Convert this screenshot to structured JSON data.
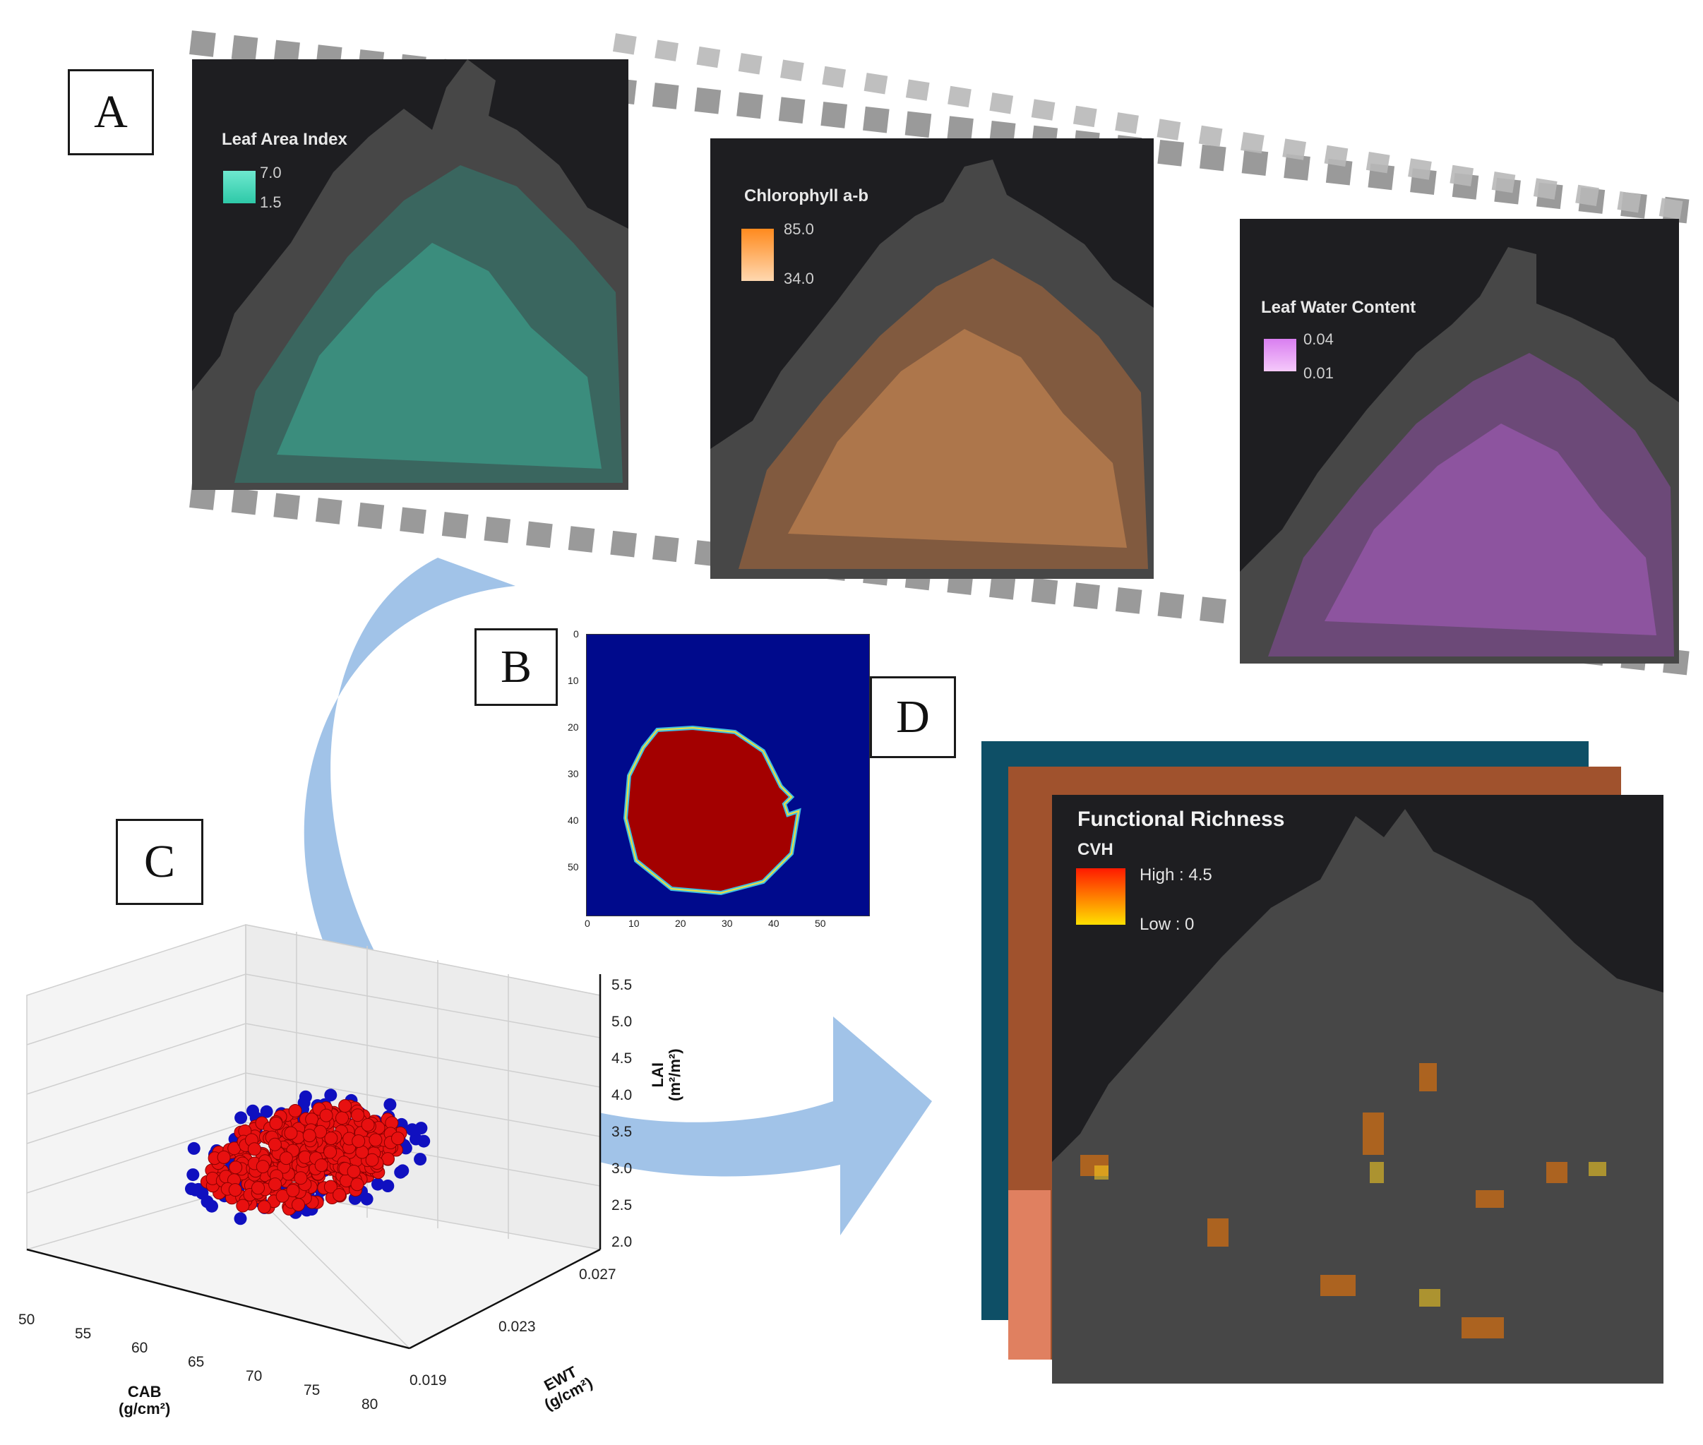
{
  "labels": {
    "a": "A",
    "b": "B",
    "c": "C",
    "d": "D"
  },
  "maps": [
    {
      "id": "lai",
      "legend_title": "Leaf Area Index",
      "high": "7.0",
      "low": "1.5",
      "color": "#3fd6b8"
    },
    {
      "id": "chl",
      "legend_title": "Chlorophyll a-b",
      "high": "85.0",
      "low": "34.0",
      "color": "#f0a060"
    },
    {
      "id": "lwc",
      "legend_title": "Leaf Water Content",
      "high": "0.04",
      "low": "0.01",
      "color": "#c066d9"
    }
  ],
  "panel_b": {
    "y_ticks": [
      "0",
      "10",
      "20",
      "30",
      "40",
      "50"
    ],
    "x_ticks": [
      "0",
      "10",
      "20",
      "30",
      "40",
      "50"
    ],
    "background_color": "#000a8c",
    "disk_color": "#a30000"
  },
  "panel_c": {
    "z_ticks": [
      "5.5",
      "5.0",
      "4.5",
      "4.0",
      "3.5",
      "3.0",
      "2.5",
      "2.0"
    ],
    "z_label": "LAI",
    "z_unit": "(m²/m²)",
    "x_ticks": [
      "50",
      "55",
      "60",
      "65",
      "70",
      "75",
      "80"
    ],
    "x_label": "CAB",
    "x_unit": "(g/cm²)",
    "y_ticks": [
      "0.019",
      "0.023",
      "0.027"
    ],
    "y_label": "EWT",
    "y_unit": "(g/cm²)",
    "colors": {
      "red_series": "#e81010",
      "blue_series": "#1010c0"
    }
  },
  "panel_d": {
    "title": "Functional Richness",
    "subtitle": "CVH",
    "high": "High : 4.5",
    "low": "Low : 0",
    "layer_colors": [
      "#0e4f66",
      "#a0522d",
      "#3a3a3a"
    ]
  }
}
